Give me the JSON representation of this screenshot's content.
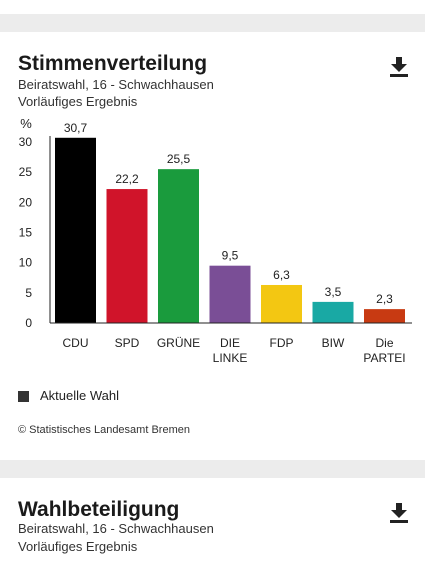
{
  "vote_card": {
    "title": "Stimmenverteilung",
    "subtitle1": "Beiratswahl, 16 - Schwachhausen",
    "subtitle2": "Vorläufiges Ergebnis",
    "download_icon": "download-icon",
    "legend_label": "Aktuelle Wahl",
    "source": "© Statistisches Landesamt Bremen"
  },
  "turnout_card": {
    "title": "Wahlbeteiligung",
    "subtitle1": "Beiratswahl, 16 - Schwachhausen",
    "subtitle2": "Vorläufiges Ergebnis",
    "download_icon": "download-icon"
  },
  "chart_data": {
    "type": "bar",
    "ylabel": "%",
    "ylim": [
      0,
      30
    ],
    "yticks": [
      0,
      5,
      10,
      15,
      20,
      25,
      30
    ],
    "grid": false,
    "categories": [
      [
        "CDU"
      ],
      [
        "SPD"
      ],
      [
        "GRÜNE"
      ],
      [
        "DIE",
        "LINKE"
      ],
      [
        "FDP"
      ],
      [
        "BIW"
      ],
      [
        "Die",
        "PARTEI"
      ]
    ],
    "value_labels": [
      "30,7",
      "22,2",
      "25,5",
      "9,5",
      "6,3",
      "3,5",
      "2,3"
    ],
    "series": [
      {
        "name": "Aktuelle Wahl",
        "values": [
          30.7,
          22.2,
          25.5,
          9.5,
          6.3,
          3.5,
          2.3
        ]
      }
    ],
    "colors": [
      "#000000",
      "#d0142a",
      "#1a9b3d",
      "#7a4e96",
      "#f3c712",
      "#19a9a4",
      "#c83a12"
    ],
    "legend": "bottom-left"
  }
}
